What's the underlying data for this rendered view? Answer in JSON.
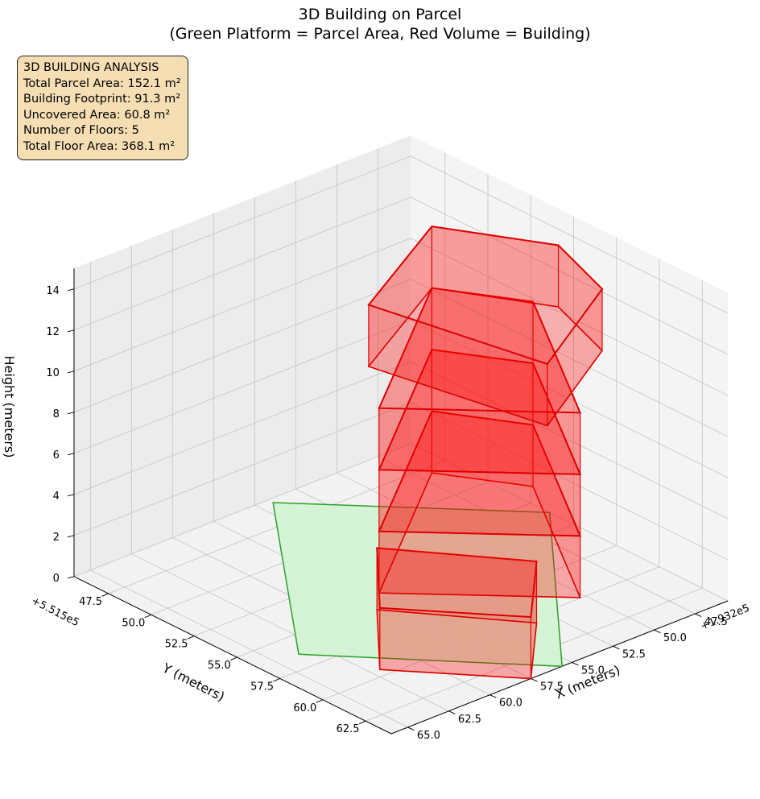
{
  "chart_data": {
    "type": "3d-polygons",
    "title": "3D Building on Parcel",
    "subtitle": "(Green Platform = Parcel Area, Red Volume = Building)",
    "xlabel": "X (meters)",
    "ylabel": "Y (meters)",
    "zlabel": "Height (meters)",
    "x_offset_label": "+1.932e5",
    "y_offset_label": "+5.515e5",
    "x_ticks": [
      "47.5",
      "50.0",
      "52.5",
      "55.0",
      "57.5",
      "60.0",
      "62.5",
      "65.0"
    ],
    "y_ticks": [
      "47.5",
      "50.0",
      "52.5",
      "55.0",
      "57.5",
      "60.0",
      "62.5"
    ],
    "z_ticks": [
      "0",
      "2",
      "4",
      "6",
      "8",
      "10",
      "12",
      "14"
    ],
    "xlim": [
      45.5,
      66
    ],
    "ylim": [
      45.5,
      64
    ],
    "zlim": [
      0,
      15
    ],
    "grid": true,
    "colors": {
      "parcel_fill": "#d3f2d3",
      "parcel_edge": "#2ca02c",
      "building_fill": "#ff0000",
      "building_edge": "#dd0000",
      "pane": "#f2f2f2",
      "grid": "#c8c8c8"
    },
    "parcel": {
      "name": "Parcel Area",
      "area_m2": 152.1,
      "footprint": [
        [
          45.5,
          53.6
        ],
        [
          55.6,
          64.0
        ],
        [
          63.7,
          56.4
        ],
        [
          54.2,
          45.8
        ]
      ],
      "z": 0
    },
    "building": {
      "name": "Building",
      "floor_height": 3,
      "floors": [
        {
          "floor": 1,
          "z0": 0,
          "z1": 3,
          "footprint": [
            [
              58.0,
              55.5
            ],
            [
              53.5,
              60.5
            ],
            [
              57.5,
              64.0
            ],
            [
              62.0,
              59.5
            ]
          ]
        },
        {
          "floor": 2,
          "z0": 3,
          "z1": 6,
          "footprint": [
            [
              51.0,
              52.0
            ],
            [
              48.5,
              55.5
            ],
            [
              54.5,
              64.0
            ],
            [
              61.0,
              58.5
            ]
          ]
        },
        {
          "floor": 3,
          "z0": 6,
          "z1": 9,
          "footprint": [
            [
              51.0,
              52.0
            ],
            [
              48.5,
              55.5
            ],
            [
              54.5,
              64.0
            ],
            [
              61.0,
              58.5
            ]
          ]
        },
        {
          "floor": 4,
          "z0": 9,
          "z1": 12,
          "footprint": [
            [
              51.0,
              52.0
            ],
            [
              48.5,
              55.5
            ],
            [
              54.5,
              64.0
            ],
            [
              61.0,
              58.5
            ]
          ]
        },
        {
          "floor": 5,
          "z0": 12,
          "z1": 15,
          "footprint": [
            [
              51.0,
              52.0
            ],
            [
              48.0,
              56.5
            ],
            [
              49.5,
              60.5
            ],
            [
              56.5,
              64.0
            ],
            [
              58.5,
              55.5
            ]
          ]
        }
      ]
    }
  },
  "infobox": {
    "heading": "3D BUILDING ANALYSIS",
    "parcel_area": "Total Parcel Area: 152.1 m²",
    "footprint": "Building Footprint: 91.3 m²",
    "uncovered": "Uncovered Area: 60.8 m²",
    "floors": "Number of Floors: 5",
    "floor_area": "Total Floor Area: 368.1 m²"
  }
}
